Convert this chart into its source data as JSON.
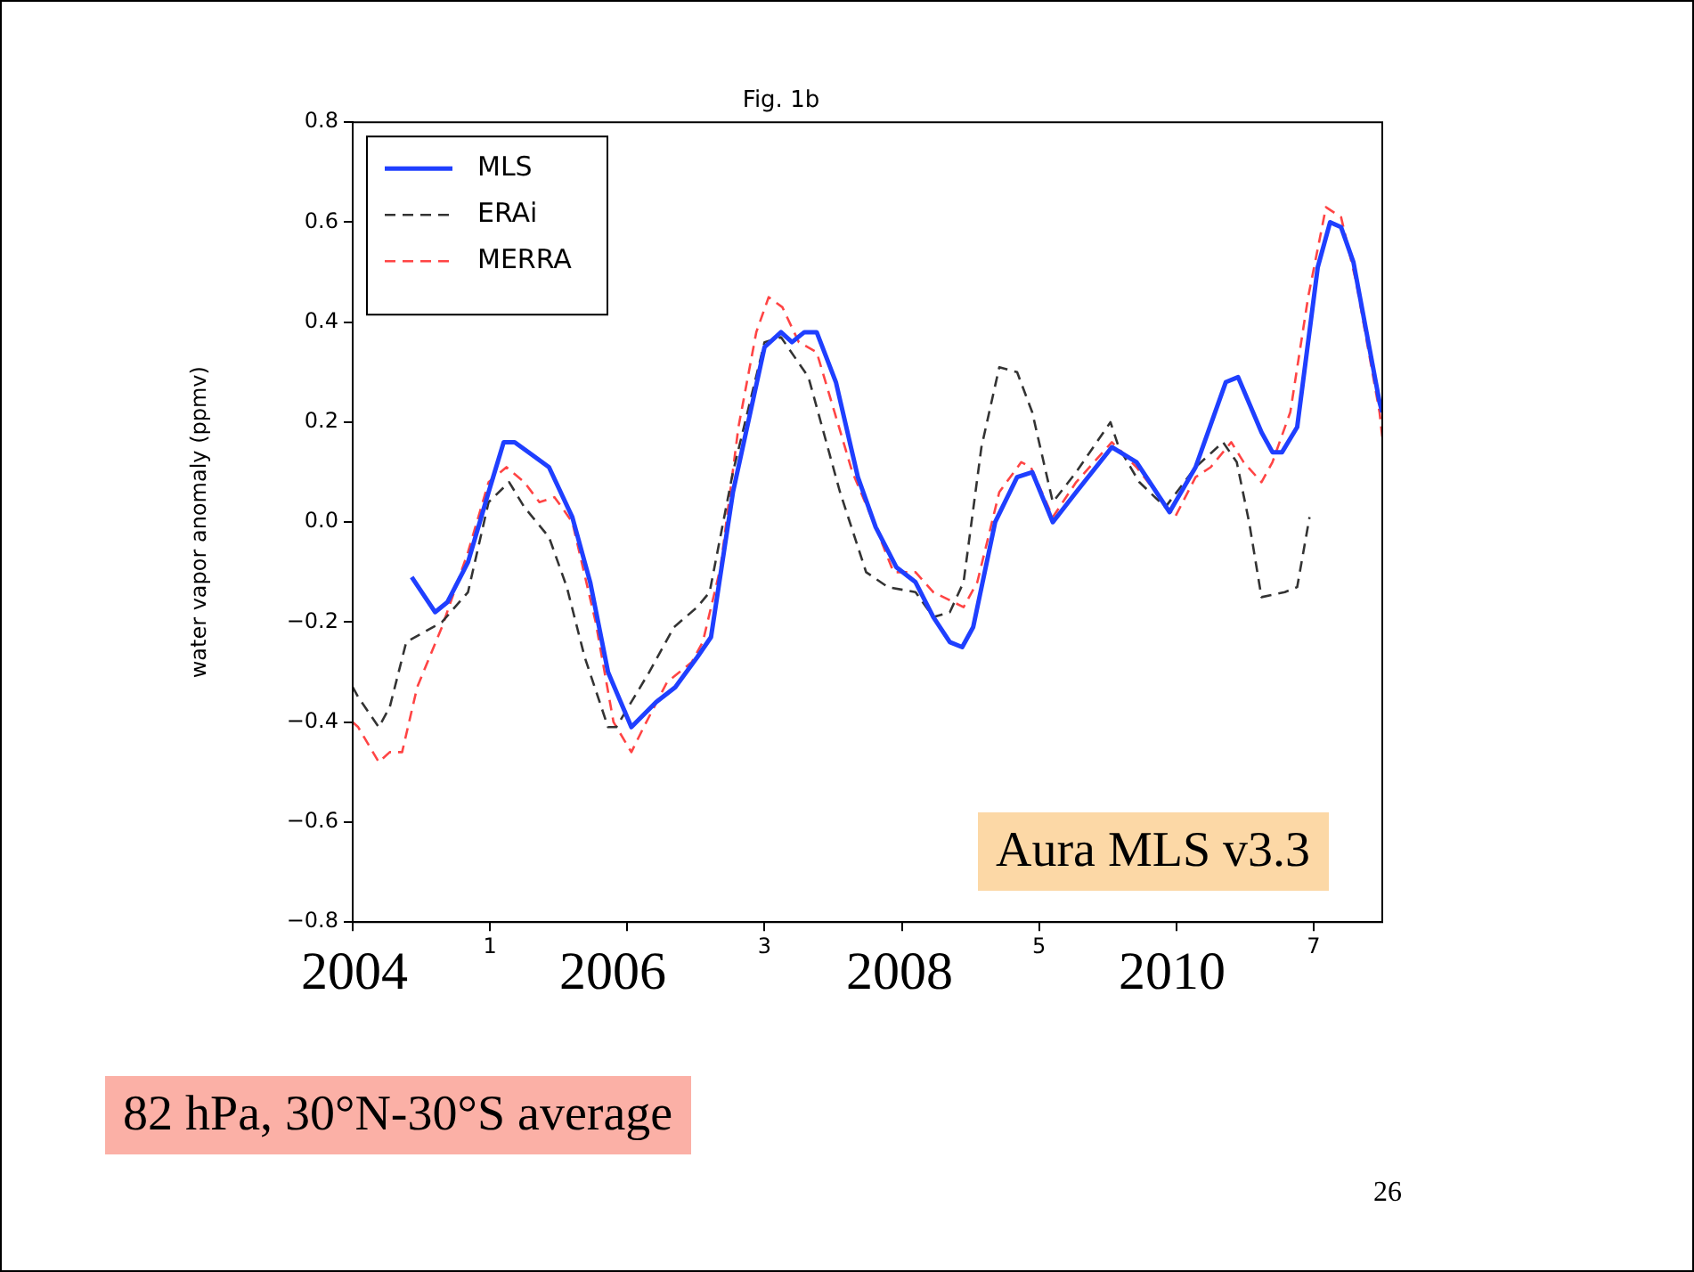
{
  "chart_data": {
    "type": "line",
    "title": "Fig. 1b",
    "ylabel": "water vapor anomaly (ppmv)",
    "xlim": [
      0,
      7.5
    ],
    "xticks": [
      {
        "value": 0,
        "label": null
      },
      1,
      {
        "value": 2,
        "label": null
      },
      3,
      {
        "value": 4,
        "label": null
      },
      5,
      {
        "value": 6,
        "label": null
      },
      7
    ],
    "ylim": [
      -0.8,
      0.8
    ],
    "yticks": [
      {
        "value": -0.8,
        "label": "−0.8"
      },
      {
        "value": -0.6,
        "label": "−0.6"
      },
      {
        "value": -0.4,
        "label": "−0.4"
      },
      {
        "value": -0.2,
        "label": "−0.2"
      },
      {
        "value": 0,
        "label": "0.0"
      },
      {
        "value": 0.2,
        "label": "0.2"
      },
      {
        "value": 0.4,
        "label": "0.4"
      },
      {
        "value": 0.6,
        "label": "0.6"
      },
      {
        "value": 0.8,
        "label": "0.8"
      }
    ],
    "grid": false,
    "legend": "top left",
    "marker": "none",
    "series": [
      {
        "name": "MLS",
        "color": "#1f3fff",
        "line_style": "solid",
        "x": [
          0.43,
          0.6,
          0.69,
          0.84,
          0.99,
          1.1,
          1.18,
          1.43,
          1.6,
          1.73,
          1.86,
          2.03,
          2.21,
          2.35,
          2.51,
          2.61,
          2.77,
          3.0,
          3.12,
          3.2,
          3.29,
          3.38,
          3.52,
          3.68,
          3.81,
          3.96,
          4.1,
          4.23,
          4.35,
          4.44,
          4.52,
          4.68,
          4.84,
          4.95,
          5.1,
          5.27,
          5.53,
          5.71,
          5.95,
          6.14,
          6.36,
          6.45,
          6.62,
          6.7,
          6.77,
          6.88,
          7.03,
          7.12,
          7.2,
          7.29,
          7.48,
          7.5
        ],
        "values": [
          -0.11,
          -0.18,
          -0.16,
          -0.08,
          0.06,
          0.16,
          0.16,
          0.11,
          0.01,
          -0.12,
          -0.3,
          -0.41,
          -0.36,
          -0.33,
          -0.27,
          -0.23,
          0.06,
          0.35,
          0.38,
          0.36,
          0.38,
          0.38,
          0.28,
          0.09,
          -0.01,
          -0.09,
          -0.12,
          -0.19,
          -0.24,
          -0.25,
          -0.21,
          0.0,
          0.09,
          0.1,
          0.0,
          0.06,
          0.15,
          0.12,
          0.02,
          0.11,
          0.28,
          0.29,
          0.18,
          0.14,
          0.14,
          0.19,
          0.51,
          0.6,
          0.59,
          0.52,
          0.24,
          0.22
        ]
      },
      {
        "name": "ERAi",
        "color": "#333333",
        "line_style": "dashed",
        "x": [
          0,
          0.04,
          0.19,
          0.27,
          0.39,
          0.65,
          0.84,
          0.99,
          1.14,
          1.25,
          1.43,
          1.56,
          1.69,
          1.86,
          1.92,
          2.16,
          2.34,
          2.51,
          2.6,
          2.77,
          3.0,
          3.12,
          3.32,
          3.55,
          3.74,
          3.9,
          4.1,
          4.23,
          4.35,
          4.45,
          4.58,
          4.71,
          4.84,
          4.95,
          5.1,
          5.27,
          5.52,
          5.58,
          5.73,
          5.92,
          6.14,
          6.34,
          6.44,
          6.53,
          6.62,
          6.79,
          6.88,
          6.97
        ],
        "values": [
          -0.33,
          -0.35,
          -0.41,
          -0.37,
          -0.24,
          -0.2,
          -0.14,
          0.04,
          0.08,
          0.03,
          -0.03,
          -0.13,
          -0.27,
          -0.41,
          -0.41,
          -0.3,
          -0.21,
          -0.17,
          -0.14,
          0.1,
          0.36,
          0.37,
          0.29,
          0.06,
          -0.1,
          -0.13,
          -0.14,
          -0.19,
          -0.18,
          -0.12,
          0.15,
          0.31,
          0.3,
          0.22,
          0.04,
          0.1,
          0.2,
          0.15,
          0.08,
          0.03,
          0.11,
          0.16,
          0.12,
          0.0,
          -0.15,
          -0.14,
          -0.13,
          0.01
        ]
      },
      {
        "name": "MERRA",
        "color": "#ff4444",
        "line_style": "dashed",
        "x": [
          0,
          0.04,
          0.19,
          0.27,
          0.36,
          0.47,
          0.65,
          0.84,
          0.99,
          1.12,
          1.25,
          1.36,
          1.47,
          1.6,
          1.77,
          1.9,
          2.03,
          2.12,
          2.29,
          2.47,
          2.55,
          2.68,
          2.81,
          2.94,
          3.03,
          3.13,
          3.25,
          3.38,
          3.51,
          3.64,
          3.81,
          3.94,
          4.1,
          4.23,
          4.45,
          4.55,
          4.71,
          4.87,
          4.94,
          5.1,
          5.27,
          5.53,
          5.71,
          5.99,
          6.14,
          6.25,
          6.4,
          6.49,
          6.62,
          6.7,
          6.83,
          6.96,
          7.09,
          7.2,
          7.31,
          7.48,
          7.5
        ],
        "values": [
          -0.4,
          -0.41,
          -0.48,
          -0.46,
          -0.46,
          -0.33,
          -0.21,
          -0.06,
          0.08,
          0.11,
          0.08,
          0.04,
          0.05,
          0.0,
          -0.2,
          -0.4,
          -0.46,
          -0.41,
          -0.32,
          -0.28,
          -0.24,
          -0.09,
          0.19,
          0.38,
          0.45,
          0.43,
          0.36,
          0.34,
          0.22,
          0.1,
          -0.01,
          -0.1,
          -0.1,
          -0.14,
          -0.17,
          -0.12,
          0.06,
          0.12,
          0.11,
          0.01,
          0.08,
          0.16,
          0.11,
          0.01,
          0.09,
          0.11,
          0.16,
          0.12,
          0.08,
          0.12,
          0.22,
          0.45,
          0.63,
          0.61,
          0.48,
          0.22,
          0.17
        ]
      }
    ],
    "annotations": [
      "Aura MLS v3.3",
      "82 hPa, 30°N-30°S average",
      "26",
      "2004",
      "2006",
      "2008",
      "2010"
    ]
  }
}
